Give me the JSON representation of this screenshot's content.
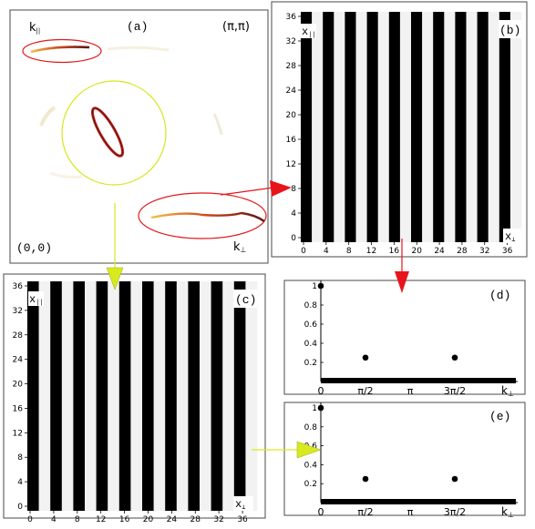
{
  "panels": {
    "a": {
      "label": "(a)",
      "corner_top_left": "k",
      "corner_top_left_sub": "||",
      "corner_top_right": "(π,π)",
      "corner_bottom_left": "(0,0)",
      "corner_bottom_right": "k",
      "corner_bottom_right_sub": "⊥"
    },
    "b": {
      "label": "(b)",
      "y_label": "x",
      "y_label_sub": "||",
      "x_label": "x",
      "x_label_sub": "⊥",
      "y_ticks": [
        "0",
        "4",
        "8",
        "12",
        "16",
        "20",
        "24",
        "28",
        "32",
        "36"
      ],
      "x_ticks": [
        "0",
        "4",
        "8",
        "12",
        "16",
        "20",
        "24",
        "28",
        "32",
        "36"
      ],
      "stripes": [
        1,
        0,
        1,
        0,
        1,
        0,
        1,
        0,
        1,
        0,
        1,
        0,
        1,
        0,
        1,
        0,
        1,
        0,
        1,
        0
      ]
    },
    "c": {
      "label": "(c)",
      "y_label": "x",
      "y_label_sub": "||",
      "x_label": "x",
      "x_label_sub": "⊥",
      "y_ticks": [
        "0",
        "4",
        "8",
        "12",
        "16",
        "20",
        "24",
        "28",
        "32",
        "36"
      ],
      "x_ticks": [
        "0",
        "4",
        "8",
        "12",
        "16",
        "20",
        "24",
        "28",
        "32",
        "36"
      ],
      "stripes": [
        1,
        0,
        1,
        0,
        1,
        0,
        1,
        0,
        1,
        0,
        1,
        0,
        1,
        0,
        1,
        0,
        1,
        0,
        1,
        0
      ]
    },
    "d": {
      "label": "(d)",
      "y_ticks": [
        "0.2",
        "0.4",
        "0.6",
        "0.8",
        "1"
      ],
      "x_ticks": [
        "0",
        "π/2",
        "π",
        "3π/2"
      ],
      "x_label": "k",
      "x_label_sub": "⊥"
    },
    "e": {
      "label": "(e)",
      "y_ticks": [
        "0.2",
        "0.4",
        "0.6",
        "0.8",
        "1"
      ],
      "x_ticks": [
        "0",
        "π/2",
        "π",
        "3π/2"
      ],
      "x_label": "k",
      "x_label_sub": "⊥"
    }
  },
  "chart_data": [
    {
      "type": "scatter",
      "panel": "(d)",
      "x_ticks": [
        "0",
        "π/2",
        "π",
        "3π/2"
      ],
      "ylim": [
        0,
        1
      ],
      "points": [
        {
          "x": 0,
          "y": 1.0
        },
        {
          "x": 1.5708,
          "y": 0.25
        },
        {
          "x": 4.7124,
          "y": 0.25
        }
      ],
      "baseline": 0.0
    },
    {
      "type": "scatter",
      "panel": "(e)",
      "x_ticks": [
        "0",
        "π/2",
        "π",
        "3π/2"
      ],
      "ylim": [
        0,
        1
      ],
      "points": [
        {
          "x": 0,
          "y": 1.0
        },
        {
          "x": 1.5708,
          "y": 0.25
        },
        {
          "x": 4.7124,
          "y": 0.25
        }
      ],
      "baseline": 0.0
    }
  ],
  "colors": {
    "frame": "#4a4a4a",
    "ellipse_red": "#e0191b",
    "circle_yellow": "#d8e61a",
    "arrow_red": "#e8141c",
    "arrow_yellow": "#d7ea1f",
    "stripe_black": "#000000",
    "stripe_light": "#f2f2f2"
  }
}
